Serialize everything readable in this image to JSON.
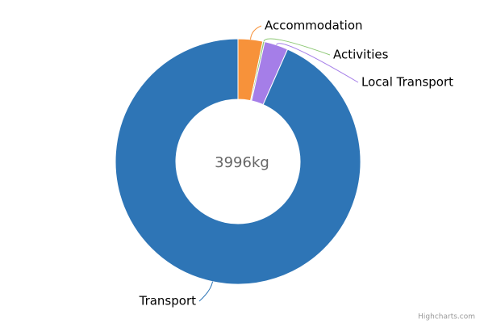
{
  "chart_data": {
    "type": "pie",
    "categories": [
      "Accommodation",
      "Activities",
      "Local Transport",
      "Transport"
    ],
    "values": [
      130,
      10,
      125,
      3731
    ],
    "colors": [
      "#f7923a",
      "#90c978",
      "#a57ee8",
      "#2e75b6"
    ],
    "center_label": "3996kg",
    "credits": "Highcharts.com"
  }
}
